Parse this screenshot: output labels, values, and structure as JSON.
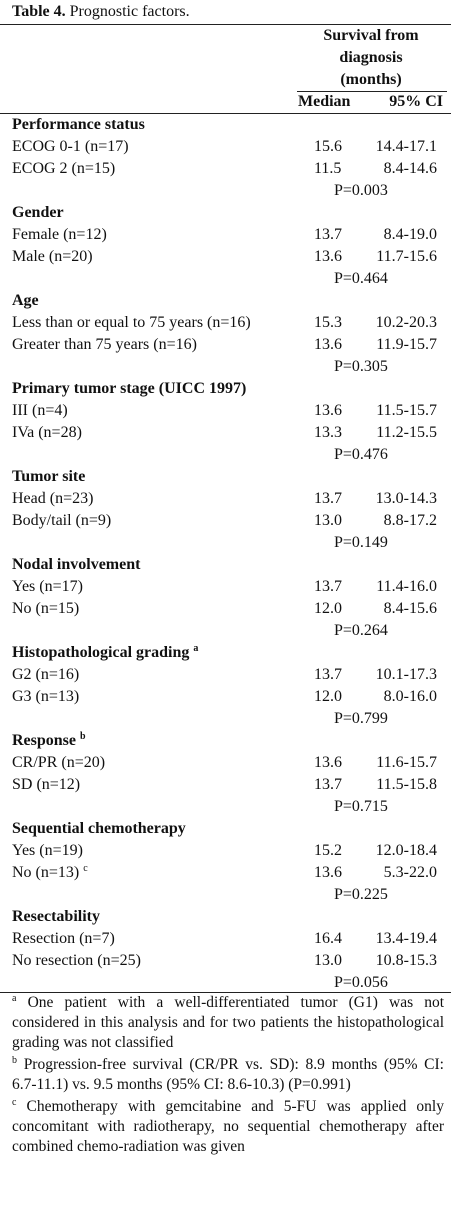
{
  "caption": {
    "label": "Table 4.",
    "text": "Prognostic factors."
  },
  "header": {
    "group_lines": [
      "Survival from",
      "diagnosis",
      "(months)"
    ],
    "columns": [
      "Median",
      "95% CI"
    ]
  },
  "sections": [
    {
      "title": "Performance status",
      "rows": [
        {
          "label": "ECOG 0-1 (n=17)",
          "median": "15.6",
          "ci": "14.4-17.1"
        },
        {
          "label": "ECOG 2 (n=15)",
          "median": "11.5",
          "ci": "8.4-14.6"
        }
      ],
      "p": "P=0.003"
    },
    {
      "title": "Gender",
      "rows": [
        {
          "label": "Female (n=12)",
          "median": "13.7",
          "ci": "8.4-19.0"
        },
        {
          "label": "Male (n=20)",
          "median": "13.6",
          "ci": "11.7-15.6"
        }
      ],
      "p": "P=0.464"
    },
    {
      "title": "Age",
      "rows": [
        {
          "label": "Less than or equal to 75 years (n=16)",
          "median": "15.3",
          "ci": "10.2-20.3"
        },
        {
          "label": "Greater than 75 years (n=16)",
          "median": "13.6",
          "ci": "11.9-15.7"
        }
      ],
      "p": "P=0.305"
    },
    {
      "title": "Primary tumor stage (UICC 1997)",
      "rows": [
        {
          "label": "III (n=4)",
          "median": "13.6",
          "ci": "11.5-15.7"
        },
        {
          "label": "IVa (n=28)",
          "median": "13.3",
          "ci": "11.2-15.5"
        }
      ],
      "p": "P=0.476"
    },
    {
      "title": "Tumor site",
      "rows": [
        {
          "label": "Head (n=23)",
          "median": "13.7",
          "ci": "13.0-14.3"
        },
        {
          "label": "Body/tail (n=9)",
          "median": "13.0",
          "ci": "8.8-17.2"
        }
      ],
      "p": "P=0.149"
    },
    {
      "title": "Nodal involvement",
      "rows": [
        {
          "label": "Yes (n=17)",
          "median": "13.7",
          "ci": "11.4-16.0"
        },
        {
          "label": "No (n=15)",
          "median": "12.0",
          "ci": "8.4-15.6"
        }
      ],
      "p": "P=0.264"
    },
    {
      "title": "Histopathological grading",
      "sup": "a",
      "rows": [
        {
          "label": "G2 (n=16)",
          "median": "13.7",
          "ci": "10.1-17.3"
        },
        {
          "label": "G3 (n=13)",
          "median": "12.0",
          "ci": "8.0-16.0"
        }
      ],
      "p": "P=0.799"
    },
    {
      "title": "Response",
      "sup": "b",
      "rows": [
        {
          "label": "CR/PR (n=20)",
          "median": "13.6",
          "ci": "11.6-15.7"
        },
        {
          "label": "SD (n=12)",
          "median": "13.7",
          "ci": "11.5-15.8"
        }
      ],
      "p": "P=0.715"
    },
    {
      "title": "Sequential chemotherapy",
      "rows": [
        {
          "label": "Yes (n=19)",
          "median": "15.2",
          "ci": "12.0-18.4"
        },
        {
          "label": "No (n=13)",
          "sup": "c",
          "median": "13.6",
          "ci": "5.3-22.0"
        }
      ],
      "p": "P=0.225"
    },
    {
      "title": "Resectability",
      "rows": [
        {
          "label": "Resection (n=7)",
          "median": "16.4",
          "ci": "13.4-19.4"
        },
        {
          "label": "No resection (n=25)",
          "median": "13.0",
          "ci": "10.8-15.3"
        }
      ],
      "p": "P=0.056"
    }
  ],
  "footnotes": [
    {
      "mark": "a",
      "text": "One patient with a well-differentiated tumor (G1) was not considered in this analysis and for two patients the histopathological grading was not classified"
    },
    {
      "mark": "b",
      "text": "Progression-free survival (CR/PR vs. SD): 8.9 months (95% CI: 6.7-11.1) vs. 9.5 months (95% CI: 8.6-10.3) (P=0.991)"
    },
    {
      "mark": "c",
      "text": "Chemotherapy with gemcitabine and 5-FU was applied only concomitant with radiotherapy, no sequential chemotherapy after combined chemo-radiation was given"
    }
  ]
}
